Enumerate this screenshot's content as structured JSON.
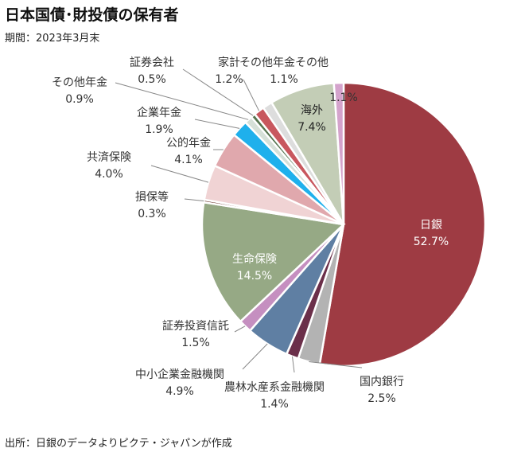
{
  "title": "日本国債･財投債の保有者",
  "subtitle": "期間：2023年3月末",
  "source": "出所：日銀のデータよりピクテ・ジャパンが作成",
  "chart_data": {
    "type": "pie",
    "unit": "%",
    "slices": [
      {
        "name": "日銀",
        "value": 52.7,
        "value_label": "52.7%",
        "color": "#9e3b43",
        "label_color": "#ffffff"
      },
      {
        "name": "国内銀行",
        "value": 2.5,
        "value_label": "2.5%",
        "color": "#b3b3b3",
        "label_color": "#333333"
      },
      {
        "name": "農林水産系金融機関",
        "value": 1.4,
        "value_label": "1.4%",
        "color": "#6b2f4a",
        "label_color": "#333333"
      },
      {
        "name": "中小企業金融機関",
        "value": 4.9,
        "value_label": "4.9%",
        "color": "#5f7fa3",
        "label_color": "#333333"
      },
      {
        "name": "証券投資信託",
        "value": 1.5,
        "value_label": "1.5%",
        "color": "#c58fc0",
        "label_color": "#333333"
      },
      {
        "name": "生命保険",
        "value": 14.5,
        "value_label": "14.5%",
        "color": "#96a985",
        "label_color": "#ffffff"
      },
      {
        "name": "損保等",
        "value": 0.3,
        "value_label": "0.3%",
        "color": "#6e3a32",
        "label_color": "#333333"
      },
      {
        "name": "共済保険",
        "value": 4.0,
        "value_label": "4.0%",
        "color": "#f0d3d4",
        "label_color": "#333333"
      },
      {
        "name": "公的年金",
        "value": 4.1,
        "value_label": "4.1%",
        "color": "#e0a8ad",
        "label_color": "#333333"
      },
      {
        "name": "企業年金",
        "value": 1.9,
        "value_label": "1.9%",
        "color": "#1fb0ec",
        "label_color": "#333333"
      },
      {
        "name": "その他年金",
        "value": 0.9,
        "value_label": "0.9%",
        "color": "#d6e0d8",
        "label_color": "#333333"
      },
      {
        "name": "証券会社",
        "value": 0.5,
        "value_label": "0.5%",
        "color": "#55744f",
        "label_color": "#333333"
      },
      {
        "name": "家計",
        "value": 1.2,
        "value_label": "1.2%",
        "color": "#c8575e",
        "label_color": "#333333"
      },
      {
        "name": "その他年金その他",
        "value": 1.1,
        "value_label": "1.1%",
        "color": "#dddddd",
        "label_color": "#333333"
      },
      {
        "name": "海外",
        "value": 7.4,
        "value_label": "7.4%",
        "color": "#c3cdb6",
        "label_color": "#222222"
      },
      {
        "name": "",
        "value": 1.1,
        "value_label": "1.1%",
        "color": "#d4a3cc",
        "label_color": "#333333"
      }
    ]
  }
}
